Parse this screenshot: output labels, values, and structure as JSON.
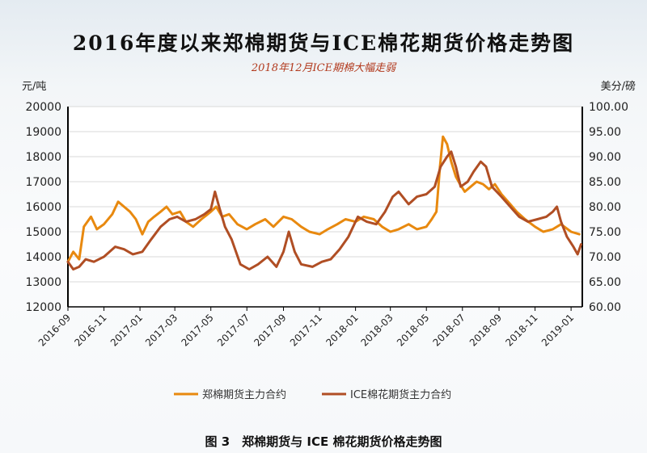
{
  "chart_data": {
    "type": "line",
    "title": "2016年度以来郑棉期货与ICE棉花期货价格走势图",
    "subtitle": "2018年12月ICE期棉大幅走弱",
    "ylabel_left": "元/吨",
    "ylabel_right": "美分/磅",
    "ylim_left": [
      12000,
      20000
    ],
    "ylim_right": [
      60,
      100
    ],
    "yticks_left": [
      "20000",
      "19000",
      "18000",
      "17000",
      "16000",
      "15000",
      "14000",
      "13000",
      "12000"
    ],
    "yticks_right": [
      "100.00",
      "95.00",
      "90.00",
      "85.00",
      "80.00",
      "75.00",
      "70.00",
      "65.00",
      "60.00"
    ],
    "x_range": [
      "2016-09-01",
      "2019-01-20"
    ],
    "xticks": [
      "2016-09",
      "2016-11",
      "2017-01",
      "2017-03",
      "2017-05",
      "2017-07",
      "2017-09",
      "2017-11",
      "2018-01",
      "2018-03",
      "2018-05",
      "2018-07",
      "2018-09",
      "2018-11",
      "2019-01"
    ],
    "grid": true,
    "legend_position": "bottom",
    "series": [
      {
        "name": "郑棉期货主力合约",
        "axis": "left",
        "color": "#e8890f",
        "points": [
          [
            "2016-09-01",
            13800
          ],
          [
            "2016-09-10",
            14200
          ],
          [
            "2016-09-20",
            13900
          ],
          [
            "2016-09-28",
            15200
          ],
          [
            "2016-10-10",
            15600
          ],
          [
            "2016-10-20",
            15100
          ],
          [
            "2016-11-01",
            15300
          ],
          [
            "2016-11-15",
            15700
          ],
          [
            "2016-11-25",
            16200
          ],
          [
            "2016-12-05",
            16000
          ],
          [
            "2016-12-15",
            15800
          ],
          [
            "2016-12-25",
            15500
          ],
          [
            "2017-01-05",
            14900
          ],
          [
            "2017-01-15",
            15400
          ],
          [
            "2017-01-25",
            15600
          ],
          [
            "2017-02-05",
            15800
          ],
          [
            "2017-02-15",
            16000
          ],
          [
            "2017-02-25",
            15700
          ],
          [
            "2017-03-10",
            15800
          ],
          [
            "2017-03-20",
            15400
          ],
          [
            "2017-04-01",
            15200
          ],
          [
            "2017-04-15",
            15500
          ],
          [
            "2017-05-01",
            15800
          ],
          [
            "2017-05-10",
            16000
          ],
          [
            "2017-05-20",
            15600
          ],
          [
            "2017-06-01",
            15700
          ],
          [
            "2017-06-15",
            15300
          ],
          [
            "2017-07-01",
            15100
          ],
          [
            "2017-07-15",
            15300
          ],
          [
            "2017-08-01",
            15500
          ],
          [
            "2017-08-15",
            15200
          ],
          [
            "2017-09-01",
            15600
          ],
          [
            "2017-09-15",
            15500
          ],
          [
            "2017-10-01",
            15200
          ],
          [
            "2017-10-15",
            15000
          ],
          [
            "2017-11-01",
            14900
          ],
          [
            "2017-11-15",
            15100
          ],
          [
            "2017-12-01",
            15300
          ],
          [
            "2017-12-15",
            15500
          ],
          [
            "2018-01-01",
            15400
          ],
          [
            "2018-01-15",
            15600
          ],
          [
            "2018-02-01",
            15500
          ],
          [
            "2018-02-15",
            15200
          ],
          [
            "2018-03-01",
            15000
          ],
          [
            "2018-03-15",
            15100
          ],
          [
            "2018-04-01",
            15300
          ],
          [
            "2018-04-15",
            15100
          ],
          [
            "2018-05-01",
            15200
          ],
          [
            "2018-05-10",
            15500
          ],
          [
            "2018-05-18",
            15800
          ],
          [
            "2018-05-24",
            17600
          ],
          [
            "2018-05-29",
            18800
          ],
          [
            "2018-06-05",
            18500
          ],
          [
            "2018-06-12",
            17800
          ],
          [
            "2018-06-20",
            17200
          ],
          [
            "2018-06-27",
            16900
          ],
          [
            "2018-07-05",
            16600
          ],
          [
            "2018-07-15",
            16800
          ],
          [
            "2018-07-25",
            17000
          ],
          [
            "2018-08-05",
            16900
          ],
          [
            "2018-08-15",
            16700
          ],
          [
            "2018-08-25",
            16900
          ],
          [
            "2018-09-05",
            16500
          ],
          [
            "2018-09-20",
            16100
          ],
          [
            "2018-10-01",
            15800
          ],
          [
            "2018-10-15",
            15500
          ],
          [
            "2018-11-01",
            15200
          ],
          [
            "2018-11-15",
            15000
          ],
          [
            "2018-12-01",
            15100
          ],
          [
            "2018-12-15",
            15300
          ],
          [
            "2019-01-01",
            15000
          ],
          [
            "2019-01-15",
            14900
          ]
        ]
      },
      {
        "name": "ICE棉花期货主力合约",
        "axis": "right",
        "color": "#b04e24",
        "points": [
          [
            "2016-09-01",
            69
          ],
          [
            "2016-09-10",
            67.5
          ],
          [
            "2016-09-20",
            68
          ],
          [
            "2016-10-01",
            69.5
          ],
          [
            "2016-10-15",
            69
          ],
          [
            "2016-11-01",
            70
          ],
          [
            "2016-11-20",
            72
          ],
          [
            "2016-12-05",
            71.5
          ],
          [
            "2016-12-20",
            70.5
          ],
          [
            "2017-01-05",
            71
          ],
          [
            "2017-01-20",
            73.5
          ],
          [
            "2017-02-05",
            76
          ],
          [
            "2017-02-20",
            77.5
          ],
          [
            "2017-03-05",
            78
          ],
          [
            "2017-03-20",
            77
          ],
          [
            "2017-04-05",
            77.5
          ],
          [
            "2017-04-20",
            78.5
          ],
          [
            "2017-05-01",
            79.5
          ],
          [
            "2017-05-08",
            83
          ],
          [
            "2017-05-15",
            80
          ],
          [
            "2017-05-25",
            76
          ],
          [
            "2017-06-05",
            73.5
          ],
          [
            "2017-06-20",
            68.5
          ],
          [
            "2017-07-05",
            67.5
          ],
          [
            "2017-07-20",
            68.5
          ],
          [
            "2017-08-05",
            70
          ],
          [
            "2017-08-20",
            68
          ],
          [
            "2017-09-01",
            71
          ],
          [
            "2017-09-10",
            75
          ],
          [
            "2017-09-20",
            71
          ],
          [
            "2017-10-01",
            68.5
          ],
          [
            "2017-10-20",
            68
          ],
          [
            "2017-11-05",
            69
          ],
          [
            "2017-11-20",
            69.5
          ],
          [
            "2017-12-05",
            71.5
          ],
          [
            "2017-12-20",
            74
          ],
          [
            "2018-01-05",
            78
          ],
          [
            "2018-01-20",
            77
          ],
          [
            "2018-02-05",
            76.5
          ],
          [
            "2018-02-20",
            79
          ],
          [
            "2018-03-05",
            82
          ],
          [
            "2018-03-15",
            83
          ],
          [
            "2018-04-01",
            80.5
          ],
          [
            "2018-04-15",
            82
          ],
          [
            "2018-05-01",
            82.5
          ],
          [
            "2018-05-15",
            84
          ],
          [
            "2018-05-25",
            88
          ],
          [
            "2018-06-05",
            90
          ],
          [
            "2018-06-12",
            91
          ],
          [
            "2018-06-20",
            88
          ],
          [
            "2018-06-28",
            84
          ],
          [
            "2018-07-10",
            85
          ],
          [
            "2018-07-20",
            87
          ],
          [
            "2018-08-01",
            89
          ],
          [
            "2018-08-10",
            88
          ],
          [
            "2018-08-20",
            84
          ],
          [
            "2018-09-05",
            82
          ],
          [
            "2018-09-20",
            80
          ],
          [
            "2018-10-05",
            78
          ],
          [
            "2018-10-20",
            77
          ],
          [
            "2018-11-05",
            77.5
          ],
          [
            "2018-11-20",
            78
          ],
          [
            "2018-12-01",
            79
          ],
          [
            "2018-12-08",
            80
          ],
          [
            "2018-12-15",
            77
          ],
          [
            "2018-12-25",
            74
          ],
          [
            "2019-01-05",
            72
          ],
          [
            "2019-01-12",
            70.5
          ],
          [
            "2019-01-18",
            72.5
          ]
        ]
      }
    ],
    "caption": "图 3　郑棉期货与 ICE 棉花期货价格走势图"
  }
}
